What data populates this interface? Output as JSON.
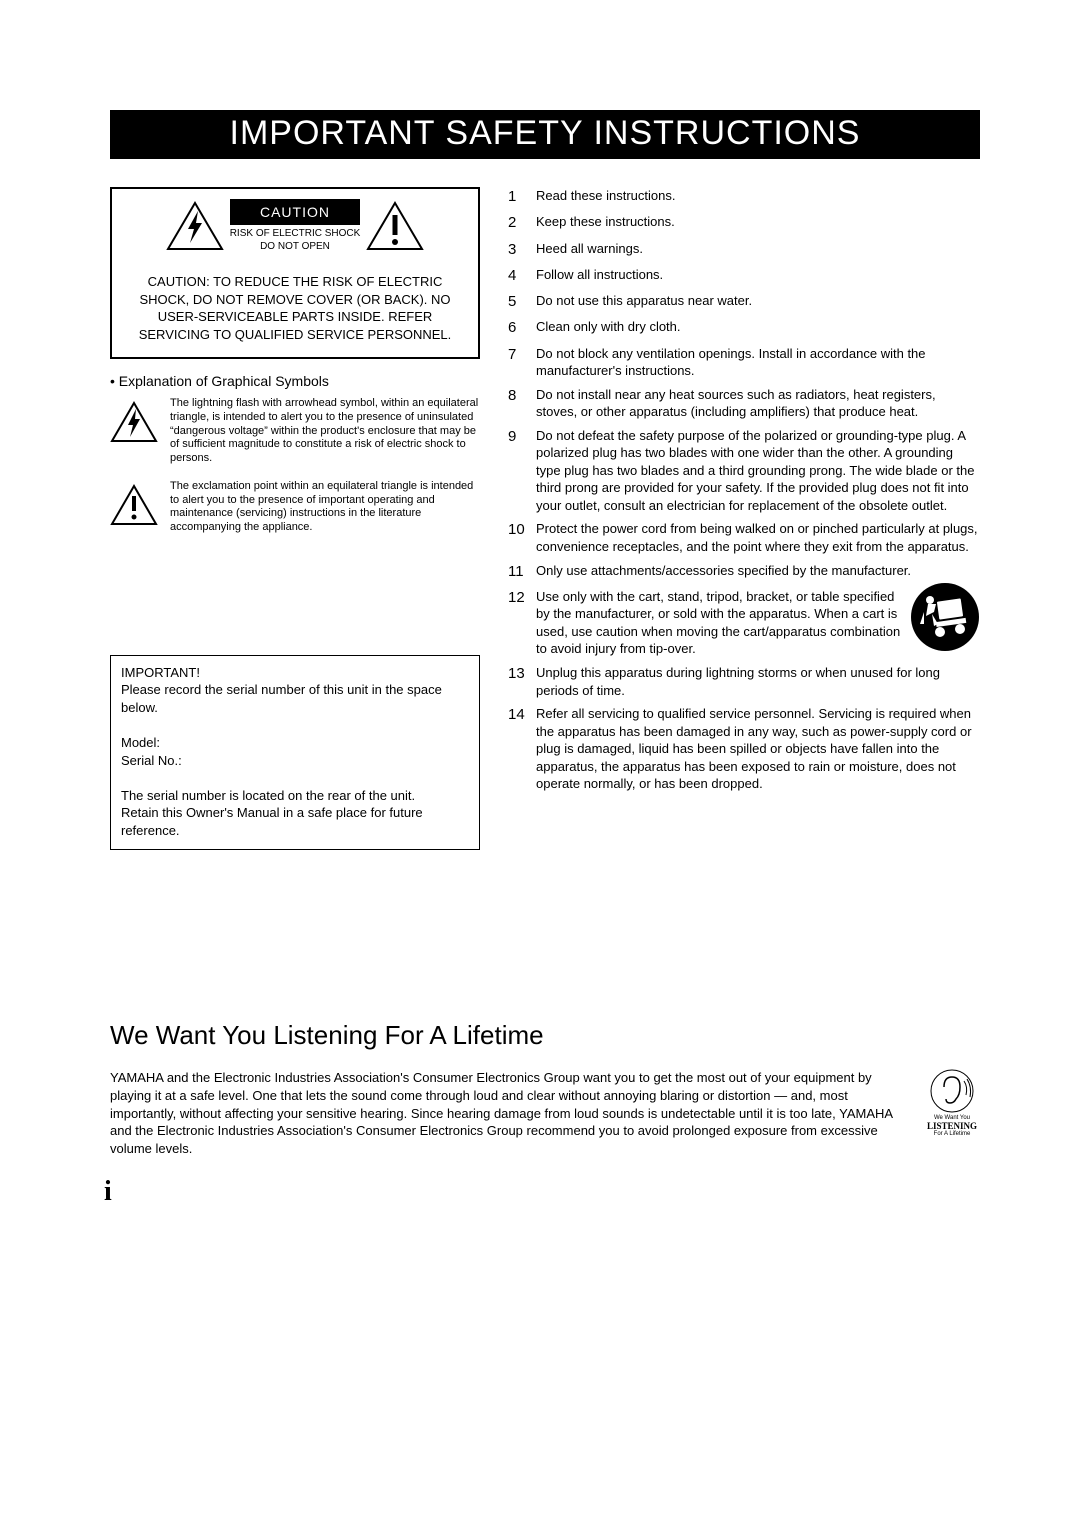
{
  "title": "IMPORTANT SAFETY INSTRUCTIONS",
  "caution": {
    "label": "CAUTION",
    "sub1": "RISK OF ELECTRIC SHOCK",
    "sub2": "DO NOT OPEN",
    "main_text": "CAUTION:  TO REDUCE THE RISK OF ELECTRIC SHOCK, DO NOT REMOVE COVER (OR BACK). NO USER-SERVICEABLE PARTS INSIDE. REFER SERVICING TO QUALIFIED SERVICE PERSONNEL."
  },
  "explanation_head": "• Explanation of Graphical Symbols",
  "symbol1_text": "The lightning flash with arrowhead symbol, within an equilateral triangle, is intended to alert you to the presence of uninsulated “dangerous voltage” within the product's enclosure that may be of sufficient magnitude to constitute a risk of electric shock to persons.",
  "symbol2_text": "The exclamation point within an equilateral triangle is intended to alert you to the presence of important operating and maintenance (servicing) instructions in the literature accompanying the appliance.",
  "important": {
    "title": "IMPORTANT!",
    "line1": "Please record the serial number of this unit in the space below.",
    "model": "Model:",
    "serial": "Serial No.:",
    "line2": "The serial number is located on the rear of the unit.",
    "line3": "Retain this Owner's Manual in a safe place for future reference."
  },
  "instructions": [
    "Read these instructions.",
    "Keep these instructions.",
    "Heed all warnings.",
    "Follow all instructions.",
    "Do not use this apparatus near water.",
    "Clean only with dry cloth.",
    "Do not block any ventilation openings. Install in accordance with the manufacturer's instructions.",
    "Do not install near any heat sources such as radiators, heat registers, stoves, or other apparatus (including amplifiers) that produce heat.",
    "Do not defeat the safety purpose of the polarized or grounding-type plug. A polarized plug has two blades with one wider than the other. A grounding type plug has two blades and a third grounding prong. The wide blade or the third prong are provided for your safety. If the provided plug does not fit into your outlet, consult an electrician for replacement of the obsolete outlet.",
    "Protect the power cord from being walked on or pinched particularly at plugs, convenience receptacles, and the point where they exit from the apparatus.",
    "Only use attachments/accessories specified by the manufacturer.",
    "Use only with the cart, stand, tripod, bracket, or table specified by the manufacturer, or sold with the apparatus. When a cart is used, use caution when moving the cart/apparatus combination to avoid injury from tip-over.",
    "Unplug this apparatus during lightning storms or when unused for long periods of time.",
    "Refer all servicing to qualified service personnel. Servicing is required when the apparatus has been damaged in any way, such as power-supply cord or plug is damaged, liquid has been spilled or objects have fallen into the apparatus, the apparatus has been exposed to rain or moisture, does not operate normally, or has been dropped."
  ],
  "lifetime": {
    "heading": "We Want You Listening For A Lifetime",
    "text": "YAMAHA and the Electronic Industries Association's Consumer Electronics Group want you to get the most out of your equipment by playing it at a safe level. One that lets the sound come through loud and clear without annoying blaring or distortion — and, most importantly, without affecting your sensitive hearing. Since hearing damage from loud sounds is undetectable until it is too late, YAMAHA and the Electronic Industries Association's Consumer Electronics Group recommend you to avoid prolonged exposure from excessive volume levels.",
    "logo_line1": "We Want You",
    "logo_line2": "LISTENING",
    "logo_line3": "For A Lifetime"
  },
  "page_num": "i"
}
